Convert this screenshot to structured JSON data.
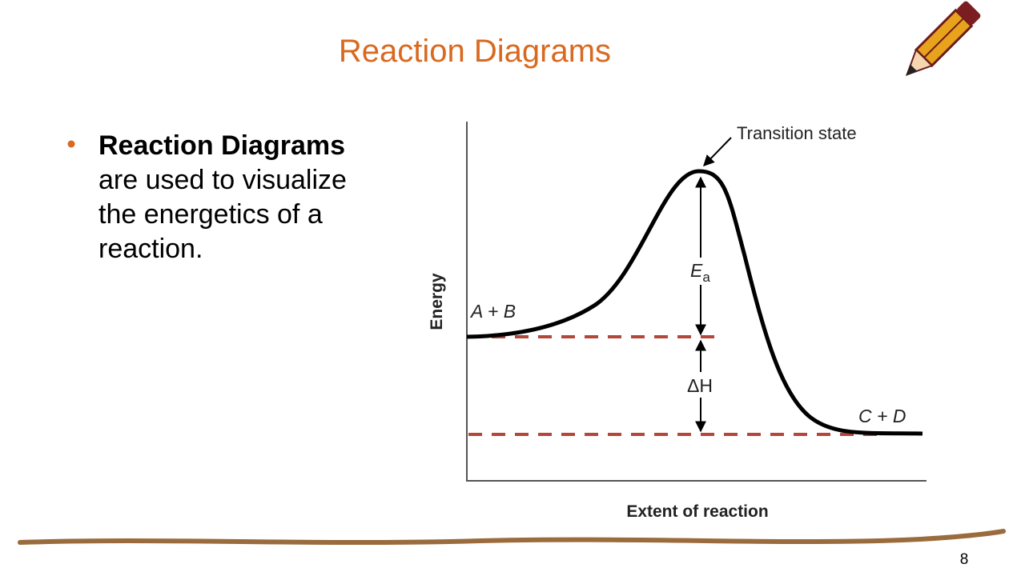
{
  "header": {
    "title": "Reaction Diagrams"
  },
  "bullets": [
    {
      "bold": "Reaction Diagrams",
      "lines": [
        "are used to visualize",
        "the energetics of a",
        "reaction."
      ]
    }
  ],
  "diagram": {
    "y_axis_label": "Energy",
    "x_axis_label": "Extent of reaction",
    "labels": {
      "transition_state": "Transition state",
      "reactants": "A + B",
      "products": "C + D",
      "activation_energy": "E",
      "activation_energy_subscript": "a",
      "enthalpy_change": "ΔH"
    }
  },
  "footer": {
    "page_number": "8"
  }
}
